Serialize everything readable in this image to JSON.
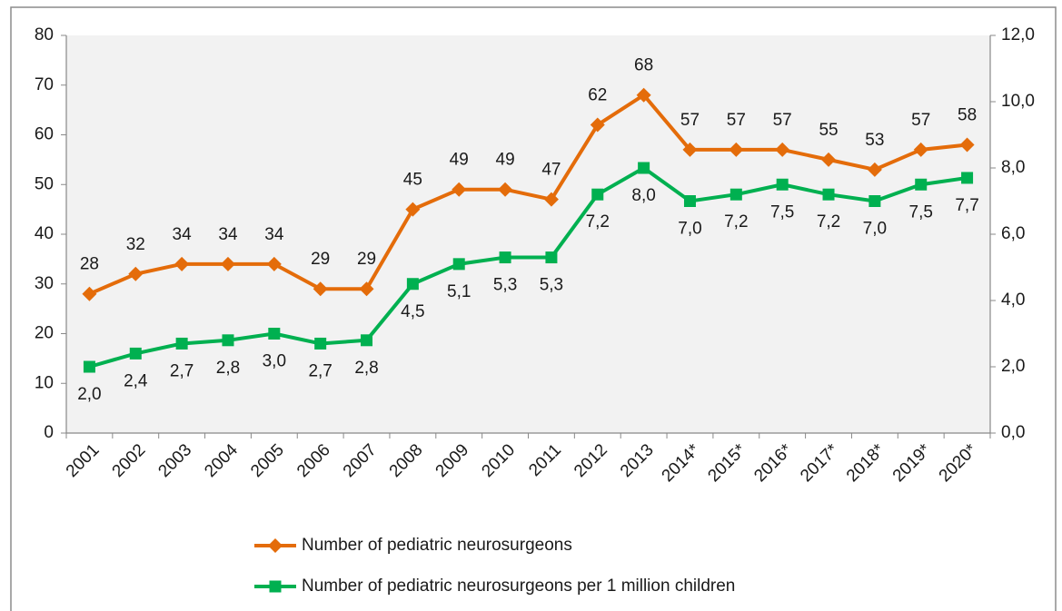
{
  "chart_data": {
    "type": "line",
    "categories": [
      "2001",
      "2002",
      "2003",
      "2004",
      "2005",
      "2006",
      "2007",
      "2008",
      "2009",
      "2010",
      "2011",
      "2012",
      "2013",
      "2014*",
      "2015*",
      "2016*",
      "2017*",
      "2018*",
      "2019*",
      "2020*"
    ],
    "series": [
      {
        "name": "Number of pediatric neurosurgeons",
        "color": "#e46c0a",
        "marker": "diamond",
        "values": [
          28,
          32,
          34,
          34,
          34,
          29,
          29,
          45,
          49,
          49,
          47,
          62,
          68,
          57,
          57,
          57,
          55,
          53,
          57,
          58
        ]
      },
      {
        "name": "Number of pediatric neurosurgeons per 1 million children",
        "color": "#00b050",
        "marker": "square",
        "axis": "y2",
        "values": [
          2.0,
          2.4,
          2.7,
          2.8,
          3.0,
          2.7,
          2.8,
          4.5,
          5.1,
          5.3,
          5.3,
          7.2,
          8.0,
          7.0,
          7.2,
          7.5,
          7.2,
          7.0,
          7.5,
          7.7
        ],
        "value_labels": [
          "2,0",
          "2,4",
          "2,7",
          "2,8",
          "3,0",
          "2,7",
          "2,8",
          "4,5",
          "5,1",
          "5,3",
          "5,3",
          "7,2",
          "8,0",
          "7,0",
          "7,2",
          "7,5",
          "7,2",
          "7,0",
          "7,5",
          "7,7"
        ]
      }
    ],
    "ylim": [
      0,
      80
    ],
    "yticks": [
      0,
      10,
      20,
      30,
      40,
      50,
      60,
      70,
      80
    ],
    "y2lim": [
      0,
      12
    ],
    "y2ticks": [
      {
        "value": 0,
        "label": "0,0"
      },
      {
        "value": 2,
        "label": "2,0"
      },
      {
        "value": 4,
        "label": "4,0"
      },
      {
        "value": 6,
        "label": "6,0"
      },
      {
        "value": 8,
        "label": "8,0"
      },
      {
        "value": 10,
        "label": "10,0"
      },
      {
        "value": 12,
        "label": "12,0"
      }
    ]
  }
}
